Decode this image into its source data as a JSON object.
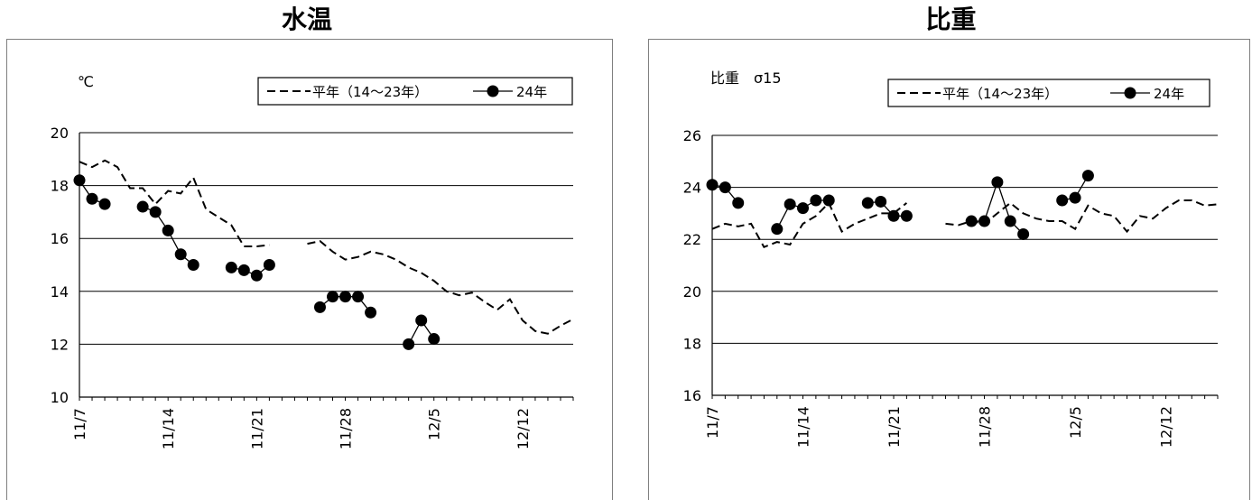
{
  "chart_data": [
    {
      "type": "line",
      "title": "水温",
      "ylabel": "℃",
      "ylim": [
        10,
        20
      ],
      "yticks": [
        10,
        12,
        14,
        16,
        18,
        20
      ],
      "grid": true,
      "x_start_date": "11/7",
      "x_end_day_index": 39,
      "xticks": [
        {
          "day": 0,
          "label": "11/7"
        },
        {
          "day": 7,
          "label": "11/14"
        },
        {
          "day": 14,
          "label": "11/21"
        },
        {
          "day": 21,
          "label": "11/28"
        },
        {
          "day": 28,
          "label": "12/5"
        },
        {
          "day": 35,
          "label": "12/12"
        }
      ],
      "legend_position": "top-right",
      "series": [
        {
          "name": "平年（14～23年）",
          "style": "dashed",
          "segments": [
            [
              [
                0,
                18.9
              ],
              [
                1,
                18.7
              ],
              [
                2,
                18.95
              ],
              [
                3,
                18.7
              ],
              [
                4,
                17.9
              ],
              [
                5,
                17.9
              ],
              [
                6,
                17.3
              ],
              [
                7,
                17.8
              ],
              [
                8,
                17.7
              ],
              [
                9,
                18.3
              ],
              [
                10,
                17.1
              ],
              [
                11,
                16.8
              ],
              [
                12,
                16.5
              ],
              [
                13,
                15.7
              ],
              [
                14,
                15.7
              ],
              [
                15,
                15.75
              ]
            ],
            [
              [
                18,
                15.8
              ],
              [
                19,
                15.9
              ],
              [
                20,
                15.5
              ],
              [
                21,
                15.2
              ],
              [
                22,
                15.3
              ],
              [
                23,
                15.5
              ],
              [
                24,
                15.4
              ],
              [
                25,
                15.2
              ],
              [
                26,
                14.9
              ],
              [
                27,
                14.7
              ],
              [
                28,
                14.4
              ],
              [
                29,
                14.0
              ],
              [
                30,
                13.85
              ],
              [
                31,
                13.95
              ],
              [
                32,
                13.6
              ],
              [
                33,
                13.3
              ],
              [
                34,
                13.7
              ],
              [
                35,
                12.9
              ],
              [
                36,
                12.5
              ],
              [
                37,
                12.4
              ],
              [
                38,
                12.7
              ],
              [
                39,
                12.95
              ]
            ]
          ]
        },
        {
          "name": "24年",
          "style": "solid-marker",
          "segments": [
            [
              [
                0,
                18.2
              ],
              [
                1,
                17.5
              ],
              [
                2,
                17.3
              ]
            ],
            [
              [
                5,
                17.2
              ],
              [
                6,
                17.0
              ],
              [
                7,
                16.3
              ],
              [
                8,
                15.4
              ],
              [
                9,
                15.0
              ]
            ],
            [
              [
                12,
                14.9
              ],
              [
                13,
                14.8
              ],
              [
                14,
                14.6
              ],
              [
                15,
                15.0
              ]
            ],
            [
              [
                19,
                13.4
              ],
              [
                20,
                13.8
              ],
              [
                21,
                13.8
              ],
              [
                22,
                13.8
              ],
              [
                23,
                13.2
              ]
            ],
            [
              [
                26,
                12.0
              ],
              [
                27,
                12.9
              ],
              [
                28,
                12.2
              ]
            ]
          ]
        }
      ]
    },
    {
      "type": "line",
      "title": "比重",
      "ylabel": "比重　σ15",
      "ylim": [
        16,
        26
      ],
      "yticks": [
        16,
        18,
        20,
        22,
        24,
        26
      ],
      "grid": true,
      "x_start_date": "11/7",
      "x_end_day_index": 39,
      "xticks": [
        {
          "day": 0,
          "label": "11/7"
        },
        {
          "day": 7,
          "label": "11/14"
        },
        {
          "day": 14,
          "label": "11/21"
        },
        {
          "day": 21,
          "label": "11/28"
        },
        {
          "day": 28,
          "label": "12/5"
        },
        {
          "day": 35,
          "label": "12/12"
        }
      ],
      "legend_position": "top-right",
      "series": [
        {
          "name": "平年（14～23年）",
          "style": "dashed",
          "segments": [
            [
              [
                0,
                22.4
              ],
              [
                1,
                22.6
              ],
              [
                2,
                22.5
              ],
              [
                3,
                22.6
              ],
              [
                4,
                21.7
              ],
              [
                5,
                21.9
              ],
              [
                6,
                21.8
              ],
              [
                7,
                22.6
              ],
              [
                8,
                22.9
              ],
              [
                9,
                23.4
              ],
              [
                10,
                22.3
              ],
              [
                11,
                22.6
              ],
              [
                12,
                22.8
              ],
              [
                13,
                23.0
              ],
              [
                14,
                23.0
              ],
              [
                15,
                23.4
              ]
            ],
            [
              [
                18,
                22.6
              ],
              [
                19,
                22.55
              ],
              [
                20,
                22.7
              ],
              [
                21,
                22.6
              ],
              [
                22,
                23.0
              ],
              [
                23,
                23.4
              ],
              [
                24,
                23.0
              ],
              [
                25,
                22.8
              ],
              [
                26,
                22.7
              ],
              [
                27,
                22.7
              ],
              [
                28,
                22.4
              ],
              [
                29,
                23.3
              ],
              [
                30,
                23.0
              ],
              [
                31,
                22.9
              ],
              [
                32,
                22.3
              ],
              [
                33,
                22.9
              ],
              [
                34,
                22.8
              ],
              [
                35,
                23.2
              ],
              [
                36,
                23.5
              ],
              [
                37,
                23.5
              ],
              [
                38,
                23.3
              ],
              [
                39,
                23.35
              ]
            ]
          ]
        },
        {
          "name": "24年",
          "style": "solid-marker",
          "segments": [
            [
              [
                0,
                24.1
              ],
              [
                1,
                24.0
              ],
              [
                2,
                23.4
              ]
            ],
            [
              [
                5,
                22.4
              ],
              [
                6,
                23.35
              ],
              [
                7,
                23.2
              ],
              [
                8,
                23.5
              ],
              [
                9,
                23.5
              ]
            ],
            [
              [
                12,
                23.4
              ],
              [
                13,
                23.45
              ],
              [
                14,
                22.9
              ],
              [
                15,
                22.9
              ]
            ],
            [
              [
                20,
                22.7
              ],
              [
                21,
                22.7
              ],
              [
                22,
                24.2
              ],
              [
                23,
                22.7
              ],
              [
                24,
                22.2
              ]
            ],
            [
              [
                27,
                23.5
              ],
              [
                28,
                23.6
              ],
              [
                29,
                24.45
              ]
            ]
          ]
        }
      ]
    }
  ]
}
